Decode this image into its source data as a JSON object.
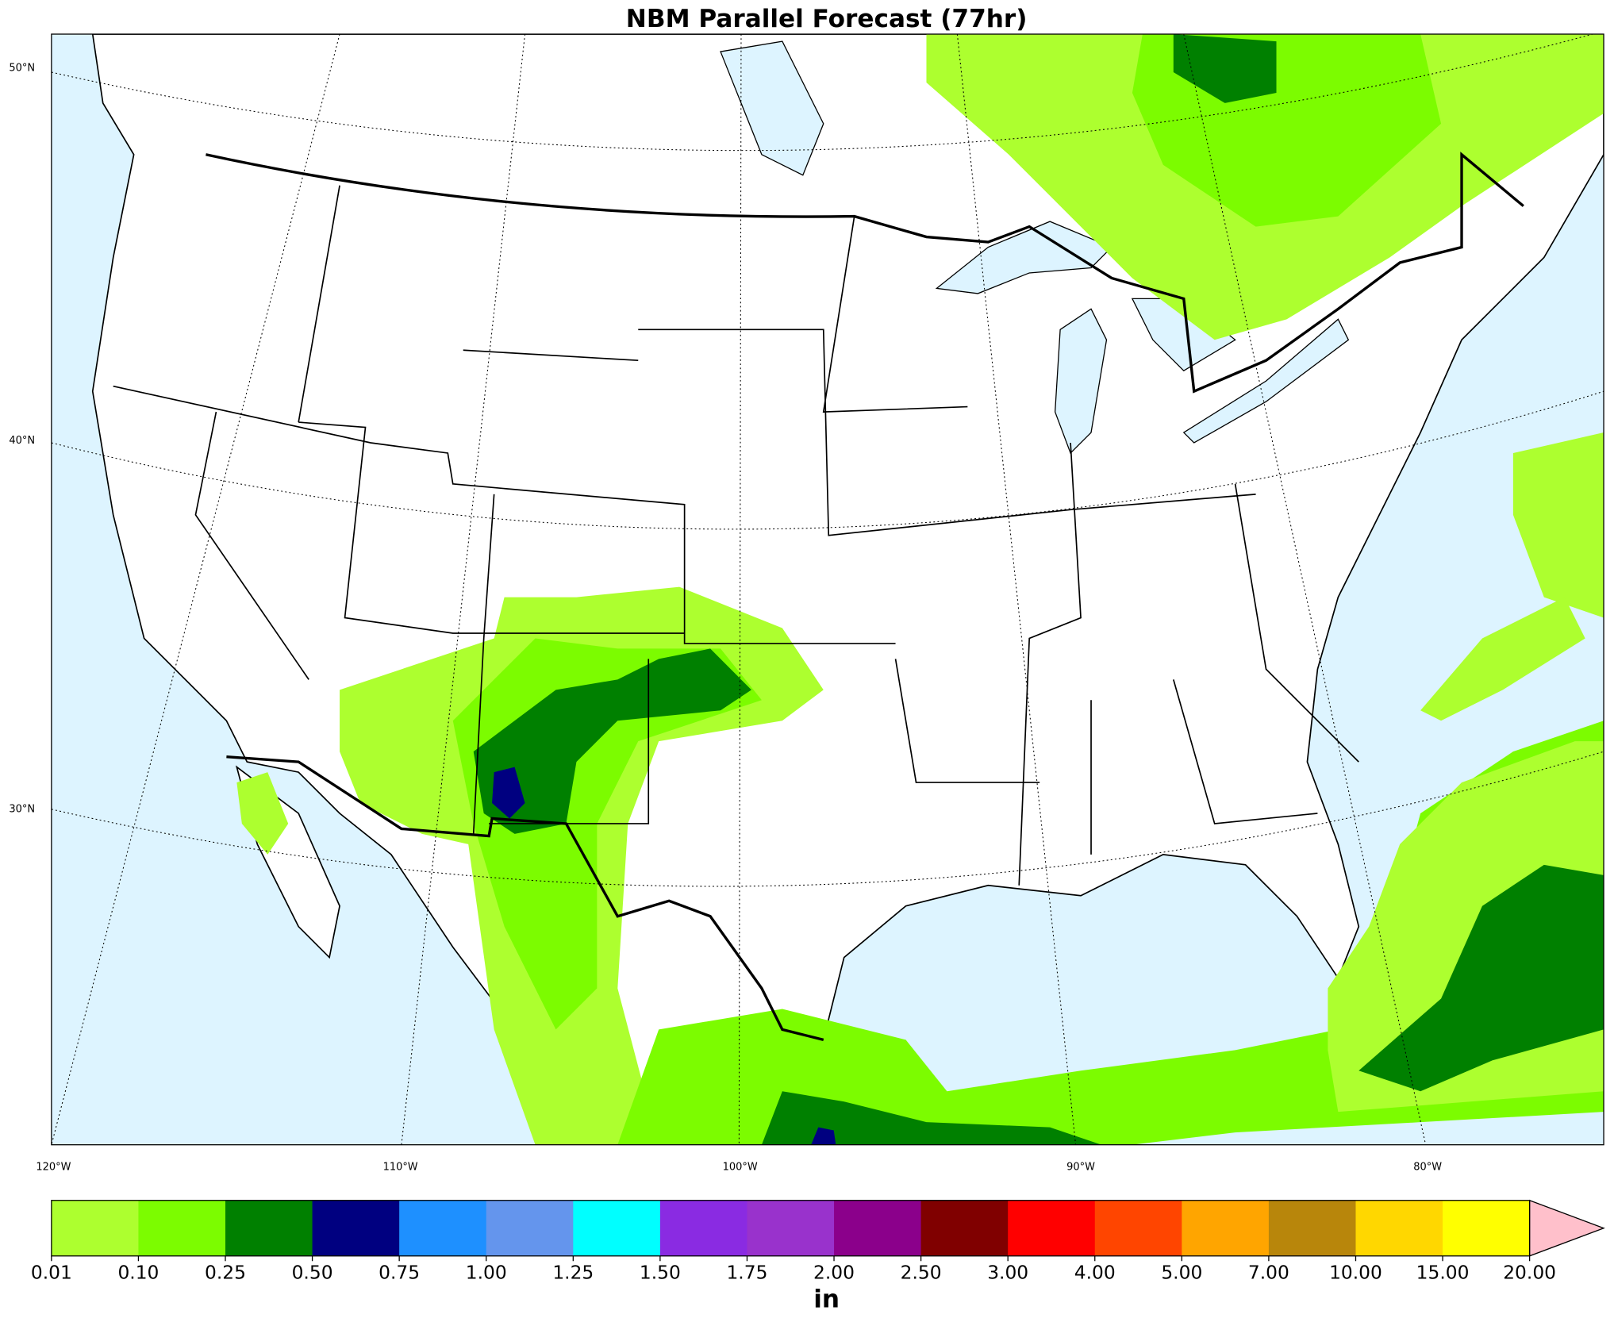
{
  "title": "NBM Parallel Forecast (77hr)",
  "latitude_labels": [
    "50°N",
    "40°N",
    "30°N"
  ],
  "longitude_labels": [
    "120°W",
    "110°W",
    "100°W",
    "90°W",
    "80°W"
  ],
  "colorbar": {
    "labels": [
      "0.01",
      "0.10",
      "0.25",
      "0.50",
      "0.75",
      "1.00",
      "1.25",
      "1.50",
      "1.75",
      "2.00",
      "2.50",
      "3.00",
      "4.00",
      "5.00",
      "7.00",
      "10.00",
      "15.00",
      "20.00"
    ],
    "colors": [
      "#adff2f",
      "#7cfc00",
      "#008000",
      "#000080",
      "#1e90ff",
      "#6495ed",
      "#00ffff",
      "#8a2be2",
      "#9932cc",
      "#8b008b",
      "#800000",
      "#ff0000",
      "#ff4500",
      "#ffa500",
      "#b8860b",
      "#ffd700",
      "#ffff00"
    ],
    "extend_color": "#ffc0cb",
    "unit": "in"
  }
}
